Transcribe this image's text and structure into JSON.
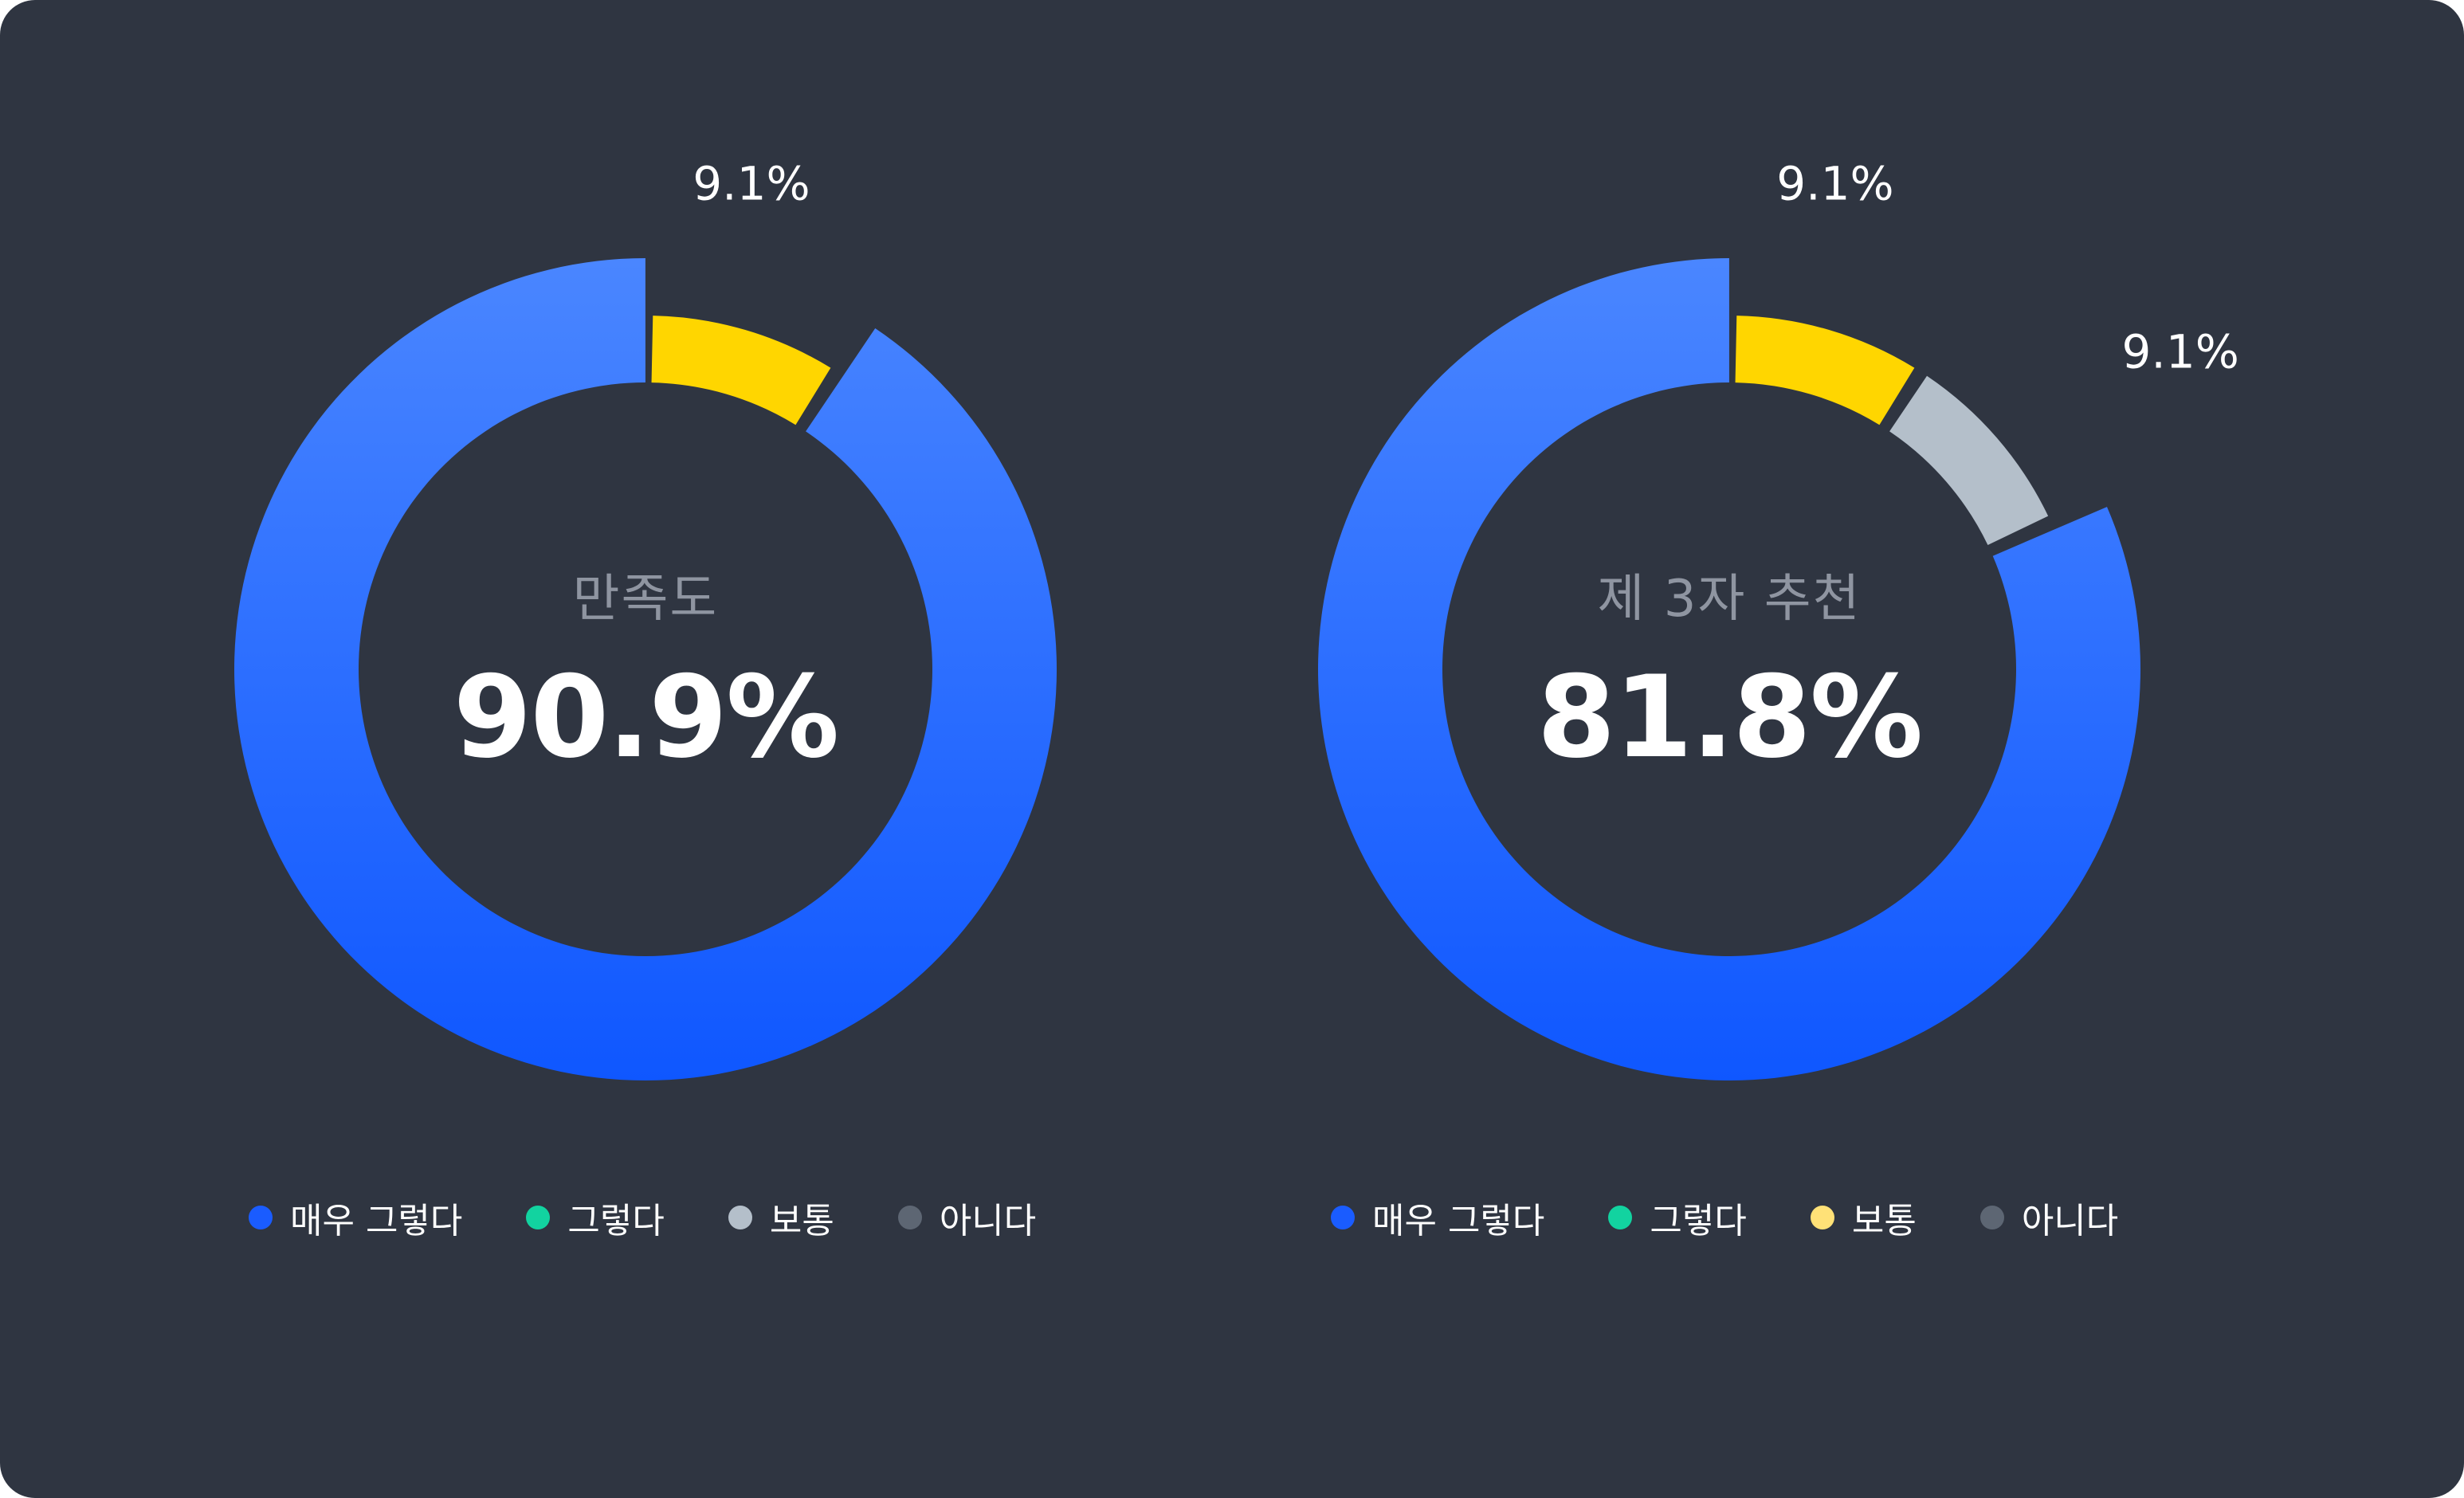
{
  "colors": {
    "background": "#2f3541",
    "very_yes": "#1a5cff",
    "yes": "#12d3a0",
    "normal": "#b4bfca",
    "no": "#5d6673",
    "highlight": "#ffd600"
  },
  "chart_data": [
    {
      "type": "pie",
      "title": "만족도",
      "center_value": "90.9%",
      "slices": [
        {
          "label": "매우 그렇다",
          "value": 90.9,
          "color": "#1a5cff"
        },
        {
          "label": "보통",
          "value": 9.1,
          "color": "#ffd600",
          "data_label": "9.1%"
        }
      ],
      "legend": [
        {
          "label": "매우 그렇다",
          "color": "#1a5cff"
        },
        {
          "label": "그렇다",
          "color": "#12d3a0"
        },
        {
          "label": "보통",
          "color": "#b4bfca"
        },
        {
          "label": "아니다",
          "color": "#5d6673"
        }
      ]
    },
    {
      "type": "pie",
      "title": "제 3자 추천",
      "center_value": "81.8%",
      "slices": [
        {
          "label": "매우 그렇다",
          "value": 81.8,
          "color": "#1a5cff"
        },
        {
          "label": "그렇다",
          "value": 9.1,
          "color": "#ffd600",
          "data_label": "9.1%"
        },
        {
          "label": "보통",
          "value": 9.1,
          "color": "#b4bfca",
          "data_label": "9.1%"
        }
      ],
      "legend": [
        {
          "label": "매우 그렇다",
          "color": "#1a5cff"
        },
        {
          "label": "그렇다",
          "color": "#12d3a0"
        },
        {
          "label": "보통",
          "color": "#ffe177"
        },
        {
          "label": "아니다",
          "color": "#5d6673"
        }
      ]
    }
  ]
}
